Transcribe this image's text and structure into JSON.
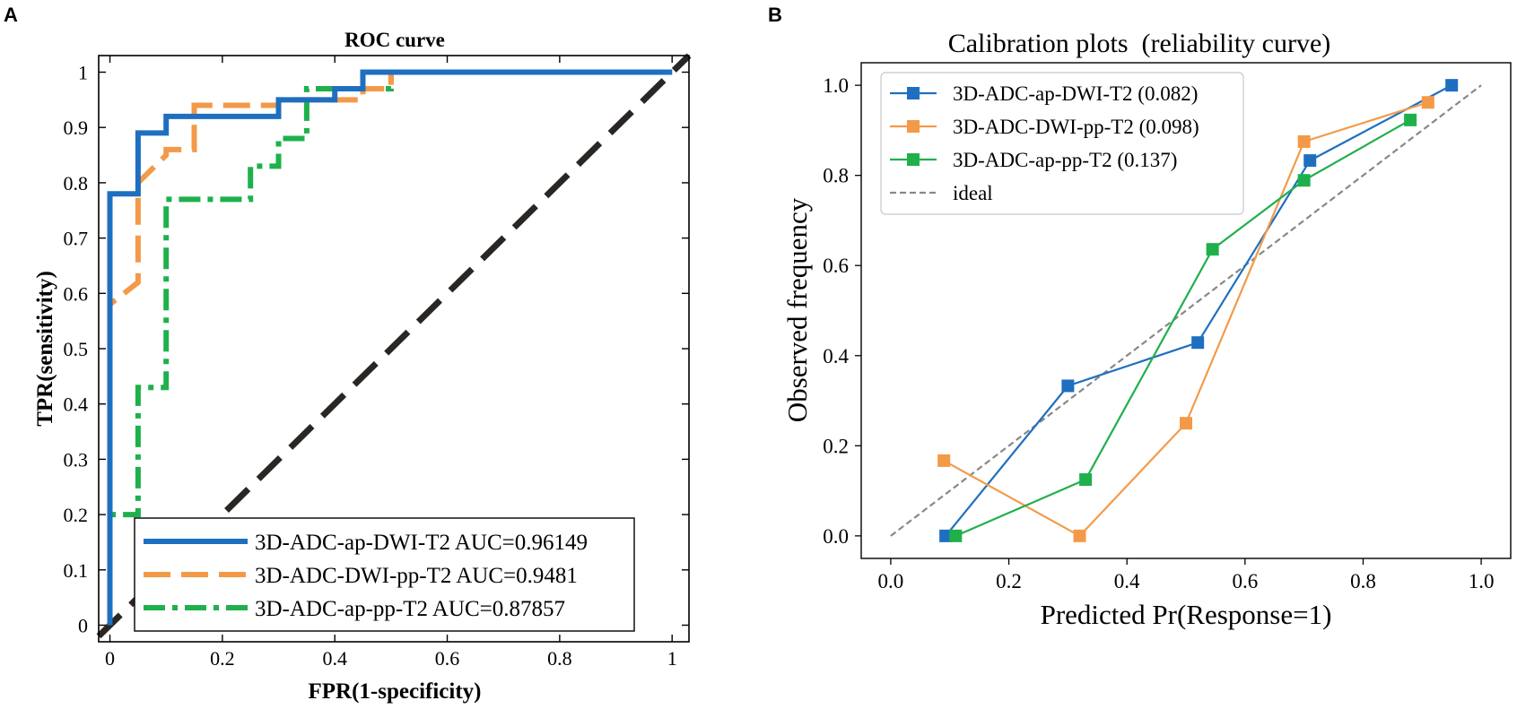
{
  "figure": {
    "panel_a_label": "A",
    "panel_b_label": "B"
  },
  "colors": {
    "blue": "#1f6fc0",
    "orange": "#f39a49",
    "green": "#1fb04c",
    "diag": "#2a2623",
    "ideal": "#888888",
    "axis": "#000000"
  },
  "chart_data": [
    {
      "type": "line",
      "title": "ROC curve",
      "xlabel": "FPR(1-specificity)",
      "ylabel": "TPR(sensitivity)",
      "xlim": [
        -0.02,
        1.03
      ],
      "ylim": [
        -0.03,
        1.03
      ],
      "xticks": [
        0,
        0.2,
        0.4,
        0.6,
        0.8,
        1
      ],
      "xtick_labels": [
        "0",
        "0.2",
        "0.4",
        "0.6",
        "0.8",
        "1"
      ],
      "yticks": [
        0,
        0.1,
        0.2,
        0.3,
        0.4,
        0.5,
        0.6,
        0.7,
        0.8,
        0.9,
        1
      ],
      "ytick_labels": [
        "0",
        "0.1",
        "0.2",
        "0.3",
        "0.4",
        "0.5",
        "0.6",
        "0.7",
        "0.8",
        "0.9",
        "1"
      ],
      "grid": false,
      "legend_position": "bottom-right",
      "series": [
        {
          "name": "3D-ADC-ap-DWI-T2 AUC=0.96149",
          "color": "#1f6fc0",
          "style": "solid",
          "x": [
            0,
            0,
            0.05,
            0.05,
            0.1,
            0.1,
            0.3,
            0.3,
            0.4,
            0.4,
            0.45,
            0.45,
            1
          ],
          "y": [
            0,
            0.78,
            0.78,
            0.89,
            0.89,
            0.92,
            0.92,
            0.95,
            0.95,
            0.97,
            0.97,
            1,
            1
          ]
        },
        {
          "name": "3D-ADC-DWI-pp-T2 AUC=0.9481",
          "color": "#f39a49",
          "style": "dashed",
          "x": [
            0,
            0,
            0.05,
            0.05,
            0.1,
            0.1,
            0.15,
            0.15,
            0.3,
            0.3,
            0.45,
            0.45,
            0.5,
            0.5,
            1
          ],
          "y": [
            0,
            0.58,
            0.62,
            0.8,
            0.85,
            0.86,
            0.86,
            0.94,
            0.94,
            0.95,
            0.95,
            0.97,
            0.97,
            1,
            1
          ]
        },
        {
          "name": "3D-ADC-ap-pp-T2 AUC=0.87857",
          "color": "#1fb04c",
          "style": "dashdot",
          "x": [
            0,
            0,
            0.05,
            0.05,
            0.1,
            0.1,
            0.25,
            0.25,
            0.3,
            0.3,
            0.35,
            0.35,
            0.5,
            0.5,
            1
          ],
          "y": [
            0,
            0.2,
            0.2,
            0.43,
            0.43,
            0.77,
            0.77,
            0.83,
            0.83,
            0.88,
            0.88,
            0.97,
            0.97,
            1,
            1
          ]
        },
        {
          "name": "chance",
          "color": "#2a2623",
          "style": "bigdash",
          "x": [
            -0.02,
            1.03
          ],
          "y": [
            -0.02,
            1.03
          ]
        }
      ],
      "legend": [
        "3D-ADC-ap-DWI-T2 AUC=0.96149",
        "3D-ADC-DWI-pp-T2 AUC=0.9481",
        "3D-ADC-ap-pp-T2 AUC=0.87857"
      ]
    },
    {
      "type": "line",
      "title": "Calibration plots  (reliability curve)",
      "xlabel": "Predicted Pr(Response=1)",
      "ylabel": "Observed frequency",
      "xlim": [
        -0.05,
        1.05
      ],
      "ylim": [
        -0.05,
        1.05
      ],
      "xticks": [
        0,
        0.2,
        0.4,
        0.6,
        0.8,
        1.0
      ],
      "xtick_labels": [
        "0.0",
        "0.2",
        "0.4",
        "0.6",
        "0.8",
        "1.0"
      ],
      "yticks": [
        0,
        0.2,
        0.4,
        0.6,
        0.8,
        1.0
      ],
      "ytick_labels": [
        "0.0",
        "0.2",
        "0.4",
        "0.6",
        "0.8",
        "1.0"
      ],
      "grid": false,
      "legend_position": "top-left",
      "series": [
        {
          "name": "3D-ADC-ap-DWI-T2 (0.082)",
          "color": "#1f6fc0",
          "marker": "square",
          "x": [
            0.093,
            0.3,
            0.52,
            0.71,
            0.95
          ],
          "y": [
            0.0,
            0.333,
            0.429,
            0.833,
            1.0
          ]
        },
        {
          "name": "3D-ADC-DWI-pp-T2 (0.098)",
          "color": "#f39a49",
          "marker": "square",
          "x": [
            0.09,
            0.32,
            0.5,
            0.7,
            0.91
          ],
          "y": [
            0.167,
            0.0,
            0.25,
            0.875,
            0.962
          ]
        },
        {
          "name": "3D-ADC-ap-pp-T2 (0.137)",
          "color": "#1fb04c",
          "marker": "square",
          "x": [
            0.11,
            0.33,
            0.545,
            0.7,
            0.88
          ],
          "y": [
            0.0,
            0.125,
            0.636,
            0.789,
            0.923
          ]
        },
        {
          "name": "ideal",
          "color": "#888888",
          "style": "dashed",
          "x": [
            0,
            1
          ],
          "y": [
            0,
            1
          ]
        }
      ],
      "legend": [
        "3D-ADC-ap-DWI-T2 (0.082)",
        "3D-ADC-DWI-pp-T2 (0.098)",
        "3D-ADC-ap-pp-T2 (0.137)",
        "ideal"
      ]
    }
  ]
}
